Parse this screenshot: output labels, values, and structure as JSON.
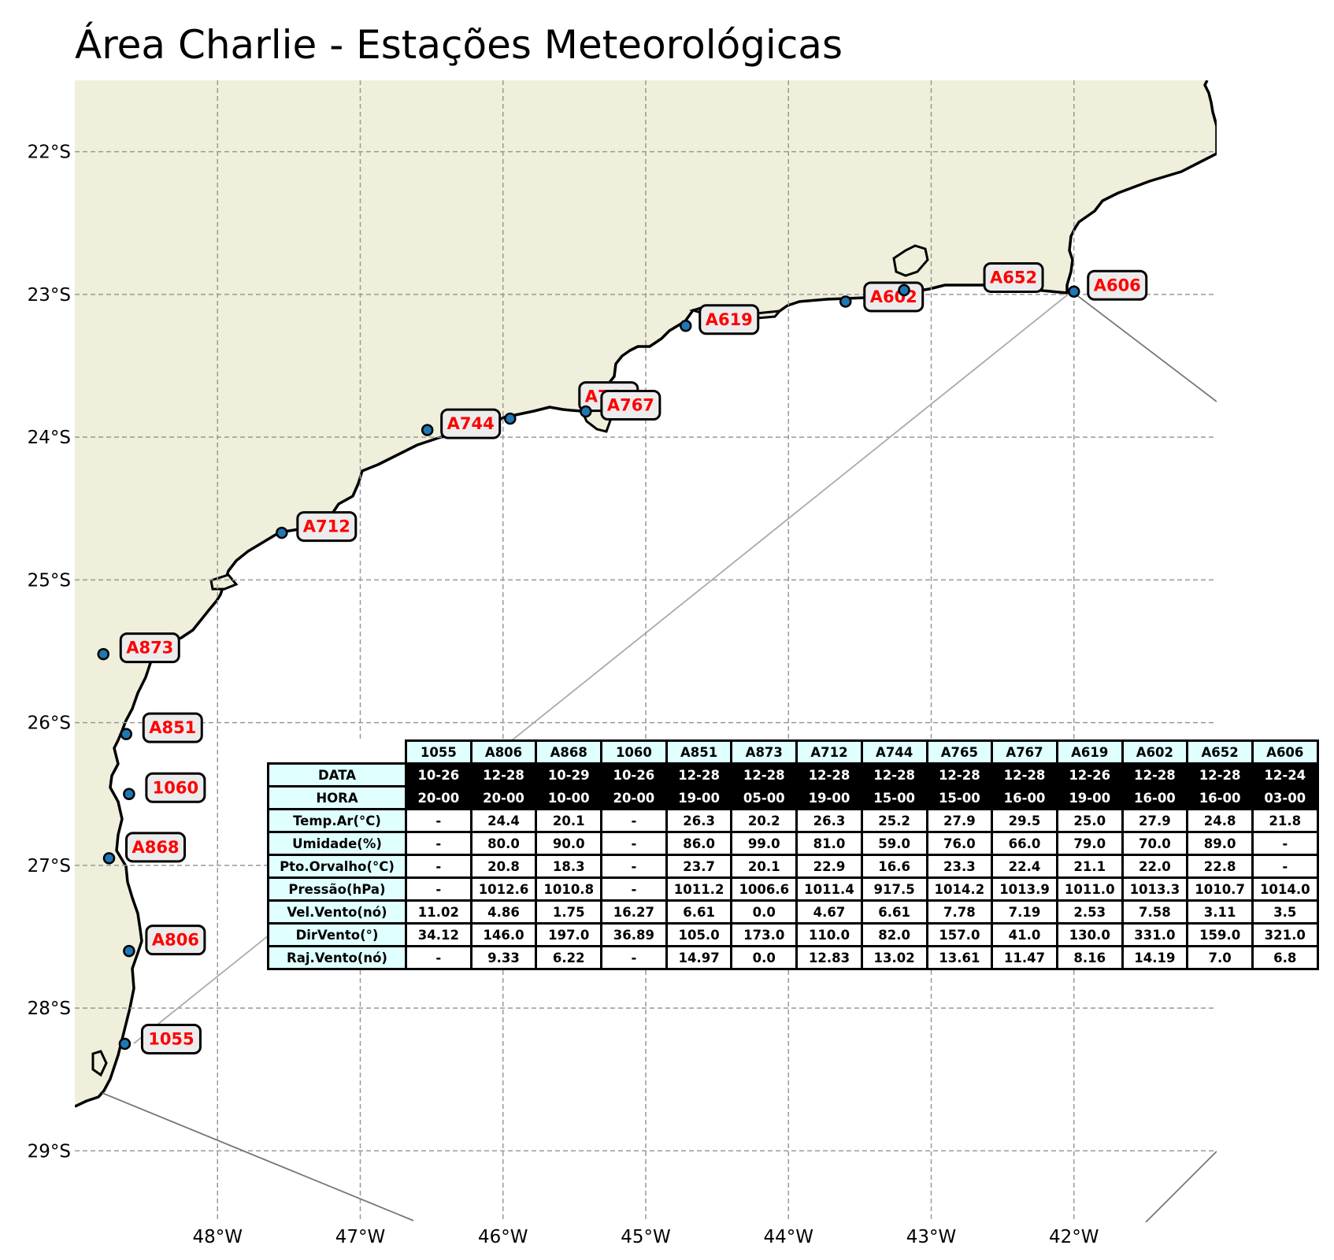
{
  "title": "Área Charlie - Estações Meteorológicas",
  "map": {
    "extent": {
      "lon_min": -49.0,
      "lon_max": -41.0,
      "lat_min": -29.5,
      "lat_max": -21.5
    },
    "lon_ticks": [
      {
        "value": -48,
        "label": "48°W"
      },
      {
        "value": -47,
        "label": "47°W"
      },
      {
        "value": -46,
        "label": "46°W"
      },
      {
        "value": -45,
        "label": "45°W"
      },
      {
        "value": -44,
        "label": "44°W"
      },
      {
        "value": -43,
        "label": "43°W"
      },
      {
        "value": -42,
        "label": "42°W"
      }
    ],
    "lat_ticks": [
      {
        "value": -22,
        "label": "22°S"
      },
      {
        "value": -23,
        "label": "23°S"
      },
      {
        "value": -24,
        "label": "24°S"
      },
      {
        "value": -25,
        "label": "25°S"
      },
      {
        "value": -26,
        "label": "26°S"
      },
      {
        "value": -27,
        "label": "27°S"
      },
      {
        "value": -28,
        "label": "28°S"
      },
      {
        "value": -29,
        "label": "29°S"
      }
    ],
    "land_color": "#efefdc",
    "ocean_color": "#ffffff",
    "station_color": "#1f77b4",
    "label_color": "#ff0000",
    "gridlines": true
  },
  "stations": [
    {
      "id": "1055",
      "lon": -48.65,
      "lat": -28.25
    },
    {
      "id": "A806",
      "lon": -48.62,
      "lat": -27.6
    },
    {
      "id": "A868",
      "lon": -48.76,
      "lat": -26.95
    },
    {
      "id": "1060",
      "lon": -48.62,
      "lat": -26.5
    },
    {
      "id": "A851",
      "lon": -48.64,
      "lat": -26.08
    },
    {
      "id": "A873",
      "lon": -48.8,
      "lat": -25.52
    },
    {
      "id": "A712",
      "lon": -47.55,
      "lat": -24.67
    },
    {
      "id": "A744",
      "lon": -46.53,
      "lat": -23.95
    },
    {
      "id": "A765",
      "lon": -45.95,
      "lat": -23.87
    },
    {
      "id": "A767",
      "lon": -45.42,
      "lat": -23.82
    },
    {
      "id": "A619",
      "lon": -44.72,
      "lat": -23.22
    },
    {
      "id": "A602",
      "lon": -43.6,
      "lat": -23.05
    },
    {
      "id": "A652",
      "lon": -43.19,
      "lat": -22.97
    },
    {
      "id": "A606",
      "lon": -42.0,
      "lat": -22.98
    }
  ],
  "table": {
    "columns": [
      "1055",
      "A806",
      "A868",
      "1060",
      "A851",
      "A873",
      "A712",
      "A744",
      "A765",
      "A767",
      "A619",
      "A602",
      "A652",
      "A606"
    ],
    "rows": [
      {
        "label": "DATA",
        "values": [
          "10-26",
          "12-28",
          "10-29",
          "10-26",
          "12-28",
          "12-28",
          "12-28",
          "12-28",
          "12-28",
          "12-28",
          "12-26",
          "12-28",
          "12-28",
          "12-24"
        ]
      },
      {
        "label": "HORA",
        "values": [
          "20-00",
          "20-00",
          "10-00",
          "20-00",
          "19-00",
          "05-00",
          "19-00",
          "15-00",
          "15-00",
          "16-00",
          "19-00",
          "16-00",
          "16-00",
          "03-00"
        ]
      },
      {
        "label": "Temp.Ar(°C)",
        "values": [
          "-",
          "24.4",
          "20.1",
          "-",
          "26.3",
          "20.2",
          "26.3",
          "25.2",
          "27.9",
          "29.5",
          "25.0",
          "27.9",
          "24.8",
          "21.8"
        ]
      },
      {
        "label": "Umidade(%)",
        "values": [
          "-",
          "80.0",
          "90.0",
          "-",
          "86.0",
          "99.0",
          "81.0",
          "59.0",
          "76.0",
          "66.0",
          "79.0",
          "70.0",
          "89.0",
          "-"
        ]
      },
      {
        "label": "Pto.Orvalho(°C)",
        "values": [
          "-",
          "20.8",
          "18.3",
          "-",
          "23.7",
          "20.1",
          "22.9",
          "16.6",
          "23.3",
          "22.4",
          "21.1",
          "22.0",
          "22.8",
          "-"
        ]
      },
      {
        "label": "Pressão(hPa)",
        "values": [
          "-",
          "1012.6",
          "1010.8",
          "-",
          "1011.2",
          "1006.6",
          "1011.4",
          "917.5",
          "1014.2",
          "1013.9",
          "1011.0",
          "1013.3",
          "1010.7",
          "1014.0"
        ]
      },
      {
        "label": "Vel.Vento(nó)",
        "values": [
          "11.02",
          "4.86",
          "1.75",
          "16.27",
          "6.61",
          "0.0",
          "4.67",
          "6.61",
          "7.78",
          "7.19",
          "2.53",
          "7.58",
          "3.11",
          "3.5"
        ]
      },
      {
        "label": "DirVento(°)",
        "values": [
          "34.12",
          "146.0",
          "197.0",
          "36.89",
          "105.0",
          "173.0",
          "110.0",
          "82.0",
          "157.0",
          "41.0",
          "130.0",
          "331.0",
          "159.0",
          "321.0"
        ]
      },
      {
        "label": "Raj.Vento(nó)",
        "values": [
          "-",
          "9.33",
          "6.22",
          "-",
          "14.97",
          "0.0",
          "12.83",
          "13.02",
          "13.61",
          "11.47",
          "8.16",
          "14.19",
          "7.0",
          "6.8"
        ]
      }
    ]
  }
}
